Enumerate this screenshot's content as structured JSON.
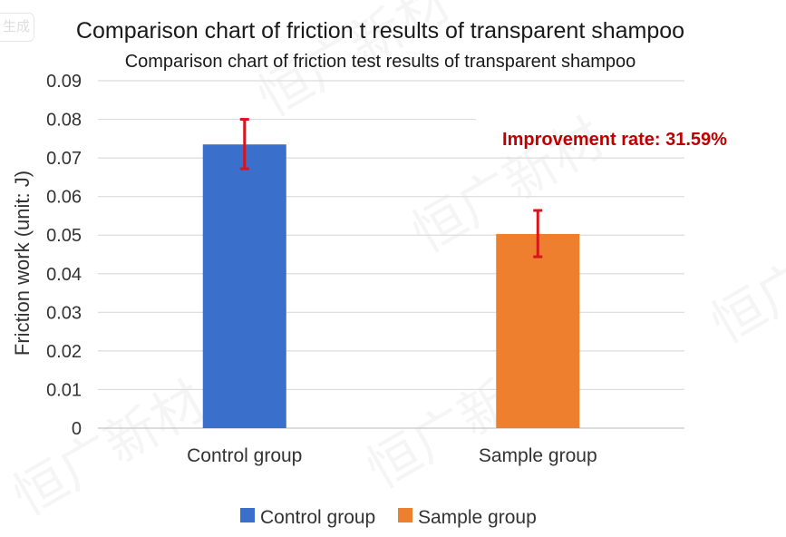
{
  "badge": "生成",
  "watermark": "恒广新材",
  "chart_data": {
    "type": "bar",
    "title": "Comparison chart of friction t results of transparent shampoo",
    "subtitle": "Comparison chart of friction test results of transparent shampoo",
    "xlabel": "",
    "ylabel": "Friction work (unit: J)",
    "ylim": [
      0,
      0.09
    ],
    "yticks": [
      "0",
      "0.01",
      "0.02",
      "0.03",
      "0.04",
      "0.05",
      "0.06",
      "0.07",
      "0.08",
      "0.09"
    ],
    "categories": [
      "Control group",
      "Sample group"
    ],
    "values": [
      0.0735,
      0.0503
    ],
    "error_low": [
      0.0672,
      0.0444
    ],
    "error_high": [
      0.08,
      0.0564
    ],
    "colors": [
      "#3A6FCB",
      "#EE7F2E"
    ],
    "error_color": "#D8141C",
    "grid": true,
    "legend": {
      "position": "bottom",
      "entries": [
        "Control group",
        "Sample group"
      ]
    },
    "annotation": {
      "text": "Improvement rate: 31.59%",
      "color": "#C00000"
    }
  }
}
